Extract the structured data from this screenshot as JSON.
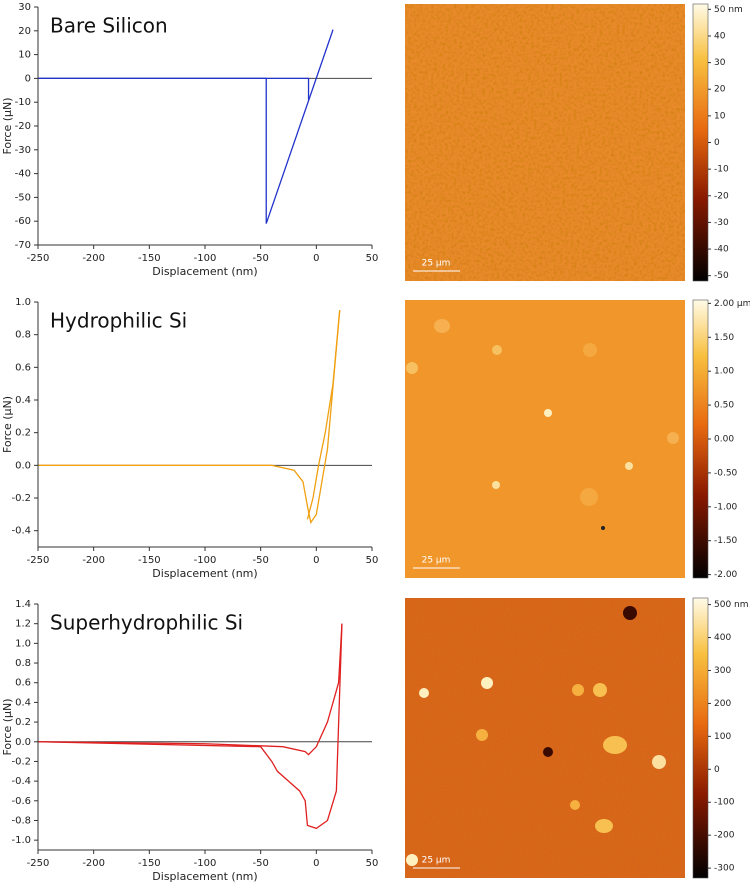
{
  "chart_data": [
    {
      "type": "line",
      "title": "Bare Silicon",
      "xlabel": "Displacement (nm)",
      "ylabel": "Force (µN)",
      "xlim": [
        -250,
        50
      ],
      "xticks": [
        -250,
        -200,
        -150,
        -100,
        -50,
        0,
        50
      ],
      "ylim": [
        -70,
        30
      ],
      "yticks": [
        -70,
        -60,
        -50,
        -40,
        -30,
        -20,
        -10,
        0,
        10,
        20,
        30
      ],
      "series": [
        {
          "color": "#2233cc",
          "x": [
            -250,
            -45,
            -45,
            15
          ],
          "values": [
            0,
            0,
            -61,
            20.5
          ]
        },
        {
          "color": "#2233cc",
          "x": [
            -250,
            -7,
            -7
          ],
          "values": [
            0,
            0,
            -9
          ]
        }
      ],
      "image": {
        "scale_bar": "25 µm",
        "colorbar": {
          "lim": [
            -52,
            52
          ],
          "ticks": [
            {
              "value": 50,
              "label": "50 nm"
            },
            40,
            30,
            20,
            10,
            0,
            -10,
            -20,
            -30,
            -40,
            -50
          ]
        }
      }
    },
    {
      "type": "line",
      "title": "Hydrophilic Si",
      "xlabel": "Displacement (nm)",
      "ylabel": "Force (µN)",
      "xlim": [
        -250,
        50
      ],
      "xticks": [
        -250,
        -200,
        -150,
        -100,
        -50,
        0,
        50
      ],
      "ylim": [
        -0.5,
        1.0
      ],
      "yticks": [
        -0.4,
        -0.2,
        {
          "value": 0,
          "label": "0.0"
        },
        0.2,
        0.4,
        0.6,
        0.8,
        {
          "value": 1,
          "label": "1.0"
        }
      ],
      "series": [
        {
          "color": "#f0a010",
          "x": [
            -250,
            -40,
            -20,
            -12,
            -8,
            -5,
            0,
            10,
            21
          ],
          "values": [
            0,
            0,
            -0.03,
            -0.1,
            -0.25,
            -0.35,
            -0.3,
            0.1,
            0.95
          ]
        },
        {
          "color": "#f0a010",
          "x": [
            21,
            15,
            8,
            2,
            -3,
            -8
          ],
          "values": [
            0.95,
            0.5,
            0.2,
            0,
            -0.2,
            -0.33
          ]
        }
      ],
      "image": {
        "scale_bar": "25 µm",
        "colorbar": {
          "lim": [
            -2.05,
            2.05
          ],
          "ticks": [
            {
              "value": 2,
              "label": "2.00 µm"
            },
            {
              "value": 1.5,
              "label": "1.50"
            },
            {
              "value": 1,
              "label": "1.00"
            },
            {
              "value": 0.5,
              "label": "0.50"
            },
            {
              "value": 0,
              "label": "0.00"
            },
            {
              "value": -0.5,
              "label": "-0.50"
            },
            {
              "value": -1,
              "label": "-1.00"
            },
            {
              "value": -1.5,
              "label": "-1.50"
            },
            {
              "value": -2,
              "label": "-2.00"
            }
          ]
        }
      }
    },
    {
      "type": "line",
      "title": "Superhydrophilic Si",
      "xlabel": "Displacement (nm)",
      "ylabel": "Force (µN)",
      "xlim": [
        -250,
        50
      ],
      "xticks": [
        -250,
        -200,
        -150,
        -100,
        -50,
        0,
        50
      ],
      "ylim": [
        -1.1,
        1.4
      ],
      "yticks": [
        {
          "value": -1,
          "label": "-1.0"
        },
        -0.8,
        -0.6,
        -0.4,
        -0.2,
        {
          "value": 0,
          "label": "0.0"
        },
        0.2,
        0.4,
        0.6,
        0.8,
        {
          "value": 1,
          "label": "1.0"
        },
        1.2,
        1.4
      ],
      "series": [
        {
          "color": "#e02020",
          "x": [
            -250,
            -50,
            -40,
            -35,
            -25,
            -15,
            -10,
            -8,
            0,
            10,
            18,
            23
          ],
          "values": [
            0,
            -0.05,
            -0.2,
            -0.3,
            -0.4,
            -0.5,
            -0.6,
            -0.85,
            -0.88,
            -0.8,
            -0.5,
            1.2
          ]
        },
        {
          "color": "#e02020",
          "x": [
            -250,
            -100,
            -30,
            -10,
            -7,
            0,
            10,
            20,
            23
          ],
          "values": [
            0,
            -0.02,
            -0.05,
            -0.1,
            -0.13,
            -0.05,
            0.2,
            0.6,
            1.2
          ]
        }
      ],
      "image": {
        "scale_bar": "25 µm",
        "colorbar": {
          "lim": [
            -330,
            520
          ],
          "ticks": [
            {
              "value": 500,
              "label": "500 nm"
            },
            400,
            300,
            200,
            100,
            0,
            -100,
            -200,
            -300
          ]
        }
      }
    }
  ]
}
